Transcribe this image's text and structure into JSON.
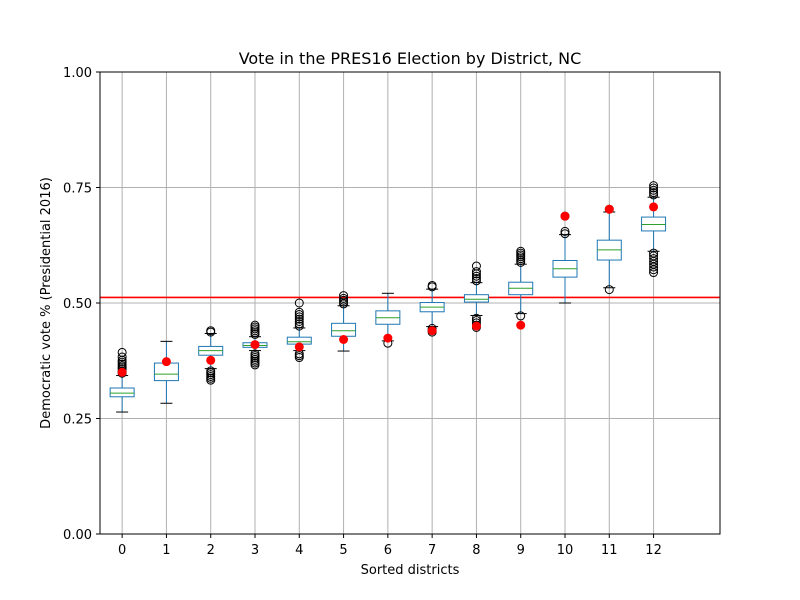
{
  "chart_data": {
    "type": "box",
    "title": "Vote in the PRES16 Election by District, NC",
    "xlabel": "Sorted districts",
    "ylabel": "Democratic vote % (Presidential 2016)",
    "ylim": [
      0,
      1
    ],
    "yticks": [
      "0.00",
      "0.25",
      "0.50",
      "0.75",
      "1.00"
    ],
    "grid": true,
    "reference_line": {
      "y": 0.512,
      "color": "#ff0000"
    },
    "colors": {
      "box": "#1f77b4",
      "median": "#2ca02c",
      "enacted": "#ff0000",
      "outlier": "#000000",
      "grid": "#b0b0b0"
    },
    "boxes": [
      {
        "district": "0",
        "whislo": 0.264,
        "q1": 0.297,
        "med": 0.305,
        "q3": 0.316,
        "whishi": 0.343,
        "outliers": [
          0.348,
          0.352,
          0.356,
          0.36,
          0.364,
          0.368,
          0.372,
          0.376,
          0.383,
          0.393
        ],
        "enacted": 0.35
      },
      {
        "district": "1",
        "whislo": 0.283,
        "q1": 0.332,
        "med": 0.346,
        "q3": 0.37,
        "whishi": 0.417,
        "outliers": [],
        "enacted": 0.373
      },
      {
        "district": "2",
        "whislo": 0.358,
        "q1": 0.387,
        "med": 0.397,
        "q3": 0.406,
        "whishi": 0.434,
        "outliers": [
          0.333,
          0.337,
          0.341,
          0.345,
          0.349,
          0.353,
          0.437,
          0.44
        ],
        "enacted": 0.376
      },
      {
        "district": "3",
        "whislo": 0.397,
        "q1": 0.404,
        "med": 0.408,
        "q3": 0.414,
        "whishi": 0.427,
        "outliers": [
          0.366,
          0.37,
          0.374,
          0.378,
          0.382,
          0.386,
          0.39,
          0.432,
          0.436,
          0.44,
          0.444,
          0.448,
          0.452
        ],
        "enacted": 0.41
      },
      {
        "district": "4",
        "whislo": 0.397,
        "q1": 0.411,
        "med": 0.416,
        "q3": 0.426,
        "whishi": 0.446,
        "outliers": [
          0.382,
          0.386,
          0.39,
          0.45,
          0.455,
          0.46,
          0.465,
          0.47,
          0.475,
          0.48,
          0.5
        ],
        "enacted": 0.405
      },
      {
        "district": "5",
        "whislo": 0.396,
        "q1": 0.428,
        "med": 0.44,
        "q3": 0.456,
        "whishi": 0.494,
        "outliers": [
          0.498,
          0.502,
          0.506,
          0.51,
          0.516
        ],
        "enacted": 0.421
      },
      {
        "district": "6",
        "whislo": 0.418,
        "q1": 0.454,
        "med": 0.468,
        "q3": 0.483,
        "whishi": 0.521,
        "outliers": [
          0.413
        ],
        "enacted": 0.424
      },
      {
        "district": "7",
        "whislo": 0.449,
        "q1": 0.481,
        "med": 0.491,
        "q3": 0.501,
        "whishi": 0.53,
        "outliers": [
          0.437,
          0.441,
          0.445,
          0.535,
          0.538
        ],
        "enacted": 0.44
      },
      {
        "district": "8",
        "whislo": 0.473,
        "q1": 0.502,
        "med": 0.508,
        "q3": 0.518,
        "whishi": 0.544,
        "outliers": [
          0.447,
          0.452,
          0.457,
          0.462,
          0.467,
          0.548,
          0.553,
          0.558,
          0.563,
          0.568,
          0.58
        ],
        "enacted": 0.45
      },
      {
        "district": "9",
        "whislo": 0.477,
        "q1": 0.518,
        "med": 0.532,
        "q3": 0.545,
        "whishi": 0.584,
        "outliers": [
          0.472,
          0.588,
          0.592,
          0.596,
          0.6,
          0.604,
          0.608,
          0.612
        ],
        "enacted": 0.452
      },
      {
        "district": "10",
        "whislo": 0.5,
        "q1": 0.556,
        "med": 0.574,
        "q3": 0.592,
        "whishi": 0.648,
        "outliers": [
          0.65,
          0.655,
          0.688
        ],
        "enacted": 0.688
      },
      {
        "district": "11",
        "whislo": 0.533,
        "q1": 0.593,
        "med": 0.615,
        "q3": 0.636,
        "whishi": 0.697,
        "outliers": [
          0.529,
          0.703
        ],
        "enacted": 0.703
      },
      {
        "district": "12",
        "whislo": 0.612,
        "q1": 0.656,
        "med": 0.67,
        "q3": 0.686,
        "whishi": 0.729,
        "outliers": [
          0.566,
          0.572,
          0.578,
          0.584,
          0.59,
          0.596,
          0.602,
          0.608,
          0.734,
          0.739,
          0.744,
          0.749,
          0.754
        ],
        "enacted": 0.708
      }
    ]
  }
}
